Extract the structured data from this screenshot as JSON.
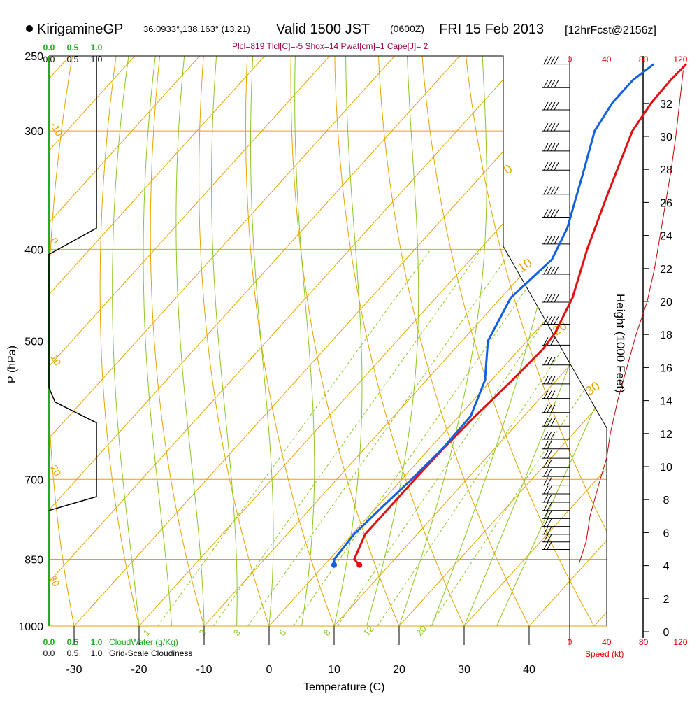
{
  "header": {
    "station": "KirigamineGP",
    "coords": "36.0933°,138.163° (13,21)",
    "valid": "Valid 1500 JST",
    "zulu": "(0600Z)",
    "date": "FRI 15 Feb 2013",
    "forecast": "[12hrFcst@2156z]",
    "params": "Plcl=819 Tlcl[C]=-5 Shox=14 Pwat[cm]=1 Cape[J]= 2"
  },
  "axes": {
    "ylabel": "P (hPa)",
    "xlabel": "Temperature (C)",
    "height_label": "Height (1000 Feet)",
    "speed_label": "Speed (kt)",
    "cloudwater_label": "CloudWater (g/Kg)",
    "cloudiness_label": "Grid-Scale Cloudiness"
  },
  "colors": {
    "temperature": "#e01010",
    "dewpoint": "#1060e0",
    "isotherm": "#e6a400",
    "dry_adiabat": "#e6a400",
    "moist_adiabat": "#8cc820",
    "mixing_ratio": "#8cc820",
    "cloud_water": "#22aa22",
    "wind_speed": "#c00000"
  },
  "chart_data": {
    "type": "line",
    "title": "KirigamineGP Valid 1500 JST (0600Z) FRI 15 Feb 2013",
    "pressure_ticks": [
      250,
      300,
      400,
      500,
      700,
      850,
      1000
    ],
    "temperature_ticks": [
      -30,
      -20,
      -10,
      0,
      10,
      20,
      30,
      40
    ],
    "height_ticks": [
      0,
      2,
      4,
      6,
      8,
      10,
      12,
      14,
      16,
      18,
      20,
      22,
      24,
      26,
      28,
      30,
      32
    ],
    "speed_ticks": [
      0,
      40,
      80,
      120
    ],
    "cloud_ticks_top": [
      "0.0",
      "0.5",
      "1.0"
    ],
    "cloud_ticks_top_black": [
      "0.0",
      "0.5",
      "1.0"
    ],
    "cloud_ticks_bottom_green": [
      "0.0",
      "0.5",
      "1.0"
    ],
    "cloud_ticks_bottom_black": [
      "0.0",
      "0.5",
      "1.0"
    ],
    "mixing_ratio_labels": [
      "1",
      "2",
      "3",
      "5",
      "8",
      "12",
      "20"
    ],
    "dry_adiabat_labels": [
      "-10",
      "0",
      "10",
      "20",
      "30",
      "0",
      "10",
      "20",
      "30"
    ],
    "series": [
      {
        "name": "Temperature",
        "points": [
          {
            "p": 862,
            "t": 5.4
          },
          {
            "p": 850,
            "t": 3.8
          },
          {
            "p": 800,
            "t": 2.0
          },
          {
            "p": 750,
            "t": 2.0
          },
          {
            "p": 700,
            "t": 2.0
          },
          {
            "p": 650,
            "t": 2.1
          },
          {
            "p": 600,
            "t": 2.5
          },
          {
            "p": 550,
            "t": 3.2
          },
          {
            "p": 510,
            "t": 3.6
          },
          {
            "p": 490,
            "t": 3.2
          },
          {
            "p": 450,
            "t": 1.0
          },
          {
            "p": 400,
            "t": -3.5
          },
          {
            "p": 350,
            "t": -8.0
          },
          {
            "p": 300,
            "t": -13.0
          },
          {
            "p": 280,
            "t": -14.0
          },
          {
            "p": 265,
            "t": -14.2
          },
          {
            "p": 255,
            "t": -14.0
          }
        ]
      },
      {
        "name": "Dewpoint",
        "points": [
          {
            "p": 862,
            "t": 1.5
          },
          {
            "p": 850,
            "t": 0.7
          },
          {
            "p": 800,
            "t": 0.3
          },
          {
            "p": 750,
            "t": 0.8
          },
          {
            "p": 700,
            "t": 1.5
          },
          {
            "p": 650,
            "t": 2.0
          },
          {
            "p": 600,
            "t": 1.8
          },
          {
            "p": 550,
            "t": -1.0
          },
          {
            "p": 500,
            "t": -6.0
          },
          {
            "p": 450,
            "t": -8.5
          },
          {
            "p": 410,
            "t": -7.5
          },
          {
            "p": 380,
            "t": -9.5
          },
          {
            "p": 330,
            "t": -15.0
          },
          {
            "p": 300,
            "t": -18.8
          },
          {
            "p": 280,
            "t": -20.0
          },
          {
            "p": 265,
            "t": -20.0
          },
          {
            "p": 255,
            "t": -19.0
          }
        ]
      }
    ],
    "cloudiness_profile": [
      {
        "p": 250,
        "c": 1.0
      },
      {
        "p": 380,
        "c": 1.0
      },
      {
        "p": 405,
        "c": 0.0
      },
      {
        "p": 560,
        "c": 0.0
      },
      {
        "p": 580,
        "c": 0.13
      },
      {
        "p": 610,
        "c": 1.0
      },
      {
        "p": 730,
        "c": 1.0
      },
      {
        "p": 755,
        "c": 0.0
      }
    ],
    "wind_speed_profile": [
      {
        "h": 4.1,
        "s": 10
      },
      {
        "h": 5.5,
        "s": 18
      },
      {
        "h": 7,
        "s": 22
      },
      {
        "h": 9,
        "s": 32
      },
      {
        "h": 10.5,
        "s": 40
      },
      {
        "h": 12,
        "s": 44
      },
      {
        "h": 14,
        "s": 52
      },
      {
        "h": 16,
        "s": 62
      },
      {
        "h": 18,
        "s": 72
      },
      {
        "h": 20,
        "s": 84
      },
      {
        "h": 22,
        "s": 92
      },
      {
        "h": 24,
        "s": 98
      },
      {
        "h": 26,
        "s": 104
      },
      {
        "h": 28,
        "s": 110
      },
      {
        "h": 30,
        "s": 115
      },
      {
        "h": 32,
        "s": 119
      },
      {
        "h": 34,
        "s": 123
      }
    ]
  }
}
